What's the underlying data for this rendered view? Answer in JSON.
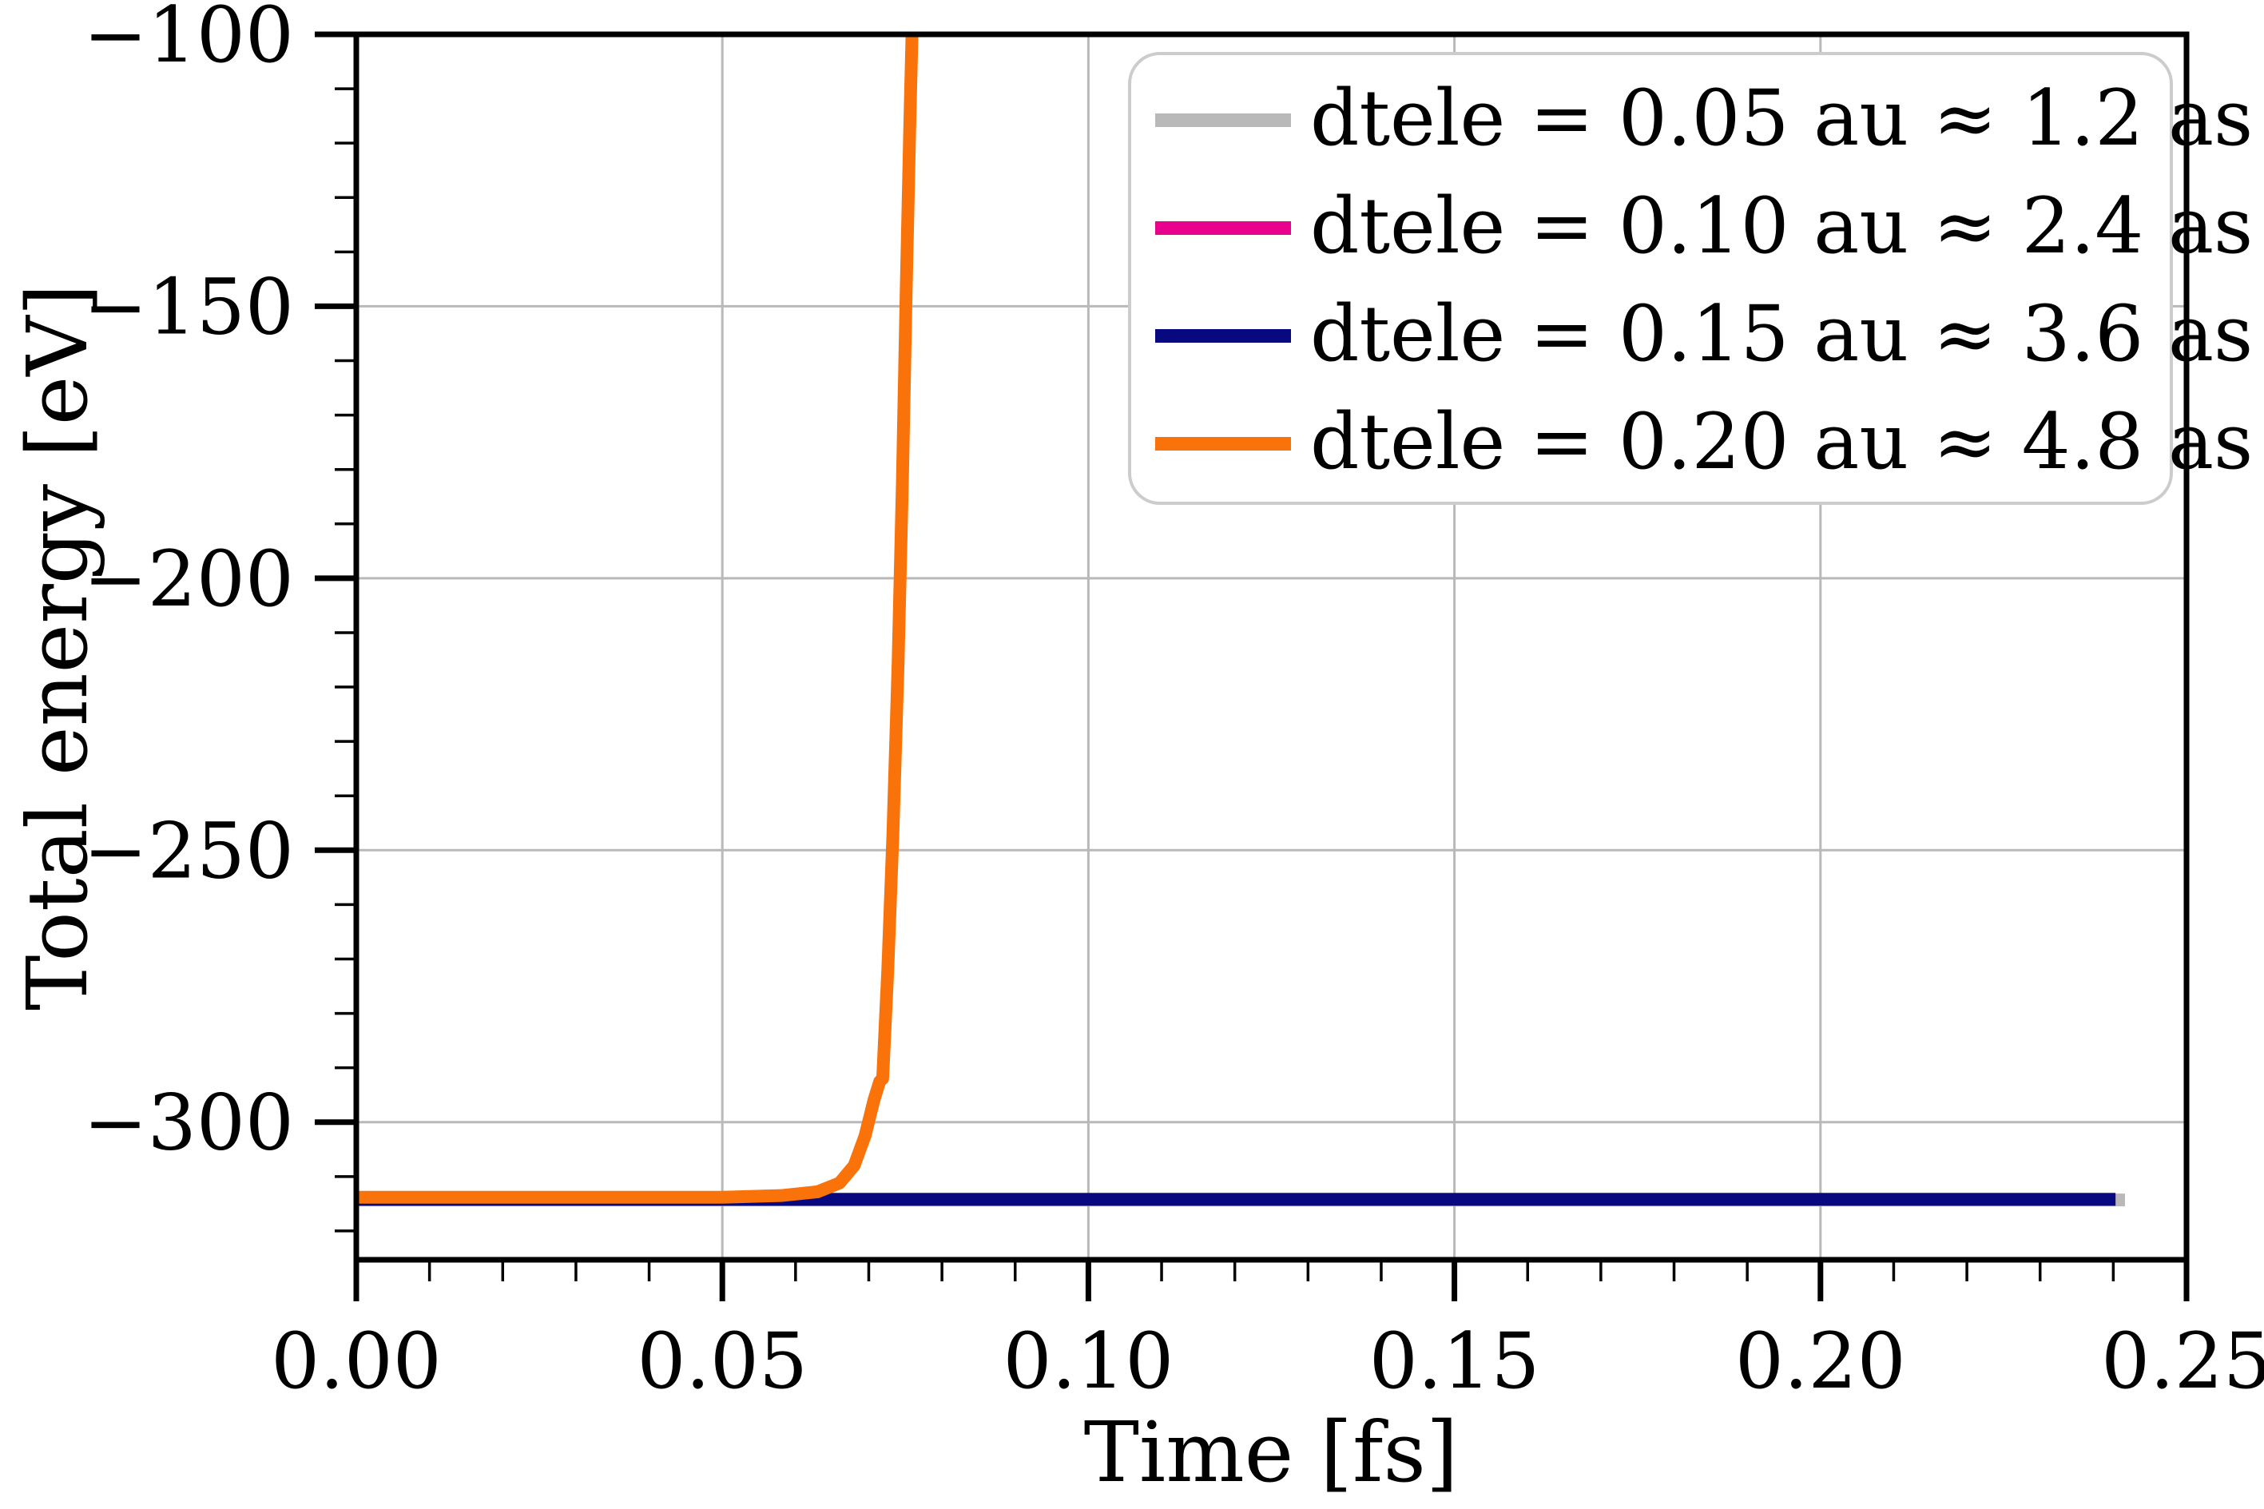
{
  "chart_data": {
    "type": "line",
    "title": "",
    "xlabel": "Time [fs]",
    "ylabel": "Total energy [eV]",
    "xlim": [
      0.0,
      0.25
    ],
    "ylim": [
      -325.3,
      -100
    ],
    "grid": {
      "show": true,
      "color": "#b9b9b9"
    },
    "axes_color": "#000000",
    "x_ticks": {
      "major": [
        0.0,
        0.05,
        0.1,
        0.15,
        0.2,
        0.25
      ],
      "labels": [
        "0.00",
        "0.05",
        "0.10",
        "0.15",
        "0.20",
        "0.25"
      ],
      "minor_step": 0.01
    },
    "y_ticks": {
      "major": [
        -100,
        -150,
        -200,
        -250,
        -300
      ],
      "labels": [
        "−100",
        "−150",
        "−200",
        "−250",
        "−300"
      ],
      "minor_step": 10
    },
    "legend": {
      "position": "upper right",
      "border_color": "#cccccc",
      "background": "#ffffff"
    },
    "series": [
      {
        "name": "dtele = 0.05 au ≈ 1.2 as",
        "color": "#b9b9b9",
        "line_width": 16,
        "points": [
          [
            0.0,
            -314.3
          ],
          [
            0.2416,
            -314.3
          ]
        ]
      },
      {
        "name": "dtele = 0.10 au ≈ 2.4 as",
        "color": "#e9008c",
        "line_width": 16,
        "points": [
          [
            0.0,
            -314.2
          ],
          [
            0.2403,
            -314.2
          ]
        ]
      },
      {
        "name": "dtele = 0.15 au ≈ 3.6 as",
        "color": "#08087f",
        "line_width": 16,
        "points": [
          [
            0.0,
            -314.2
          ],
          [
            0.2403,
            -314.2
          ]
        ]
      },
      {
        "name": "dtele = 0.20 au ≈ 4.8 as",
        "color": "#fa730a",
        "line_width": 16,
        "points": [
          [
            0.0,
            -313.8
          ],
          [
            0.05,
            -313.8
          ],
          [
            0.058,
            -313.5
          ],
          [
            0.063,
            -312.8
          ],
          [
            0.066,
            -311.2
          ],
          [
            0.068,
            -308.0
          ],
          [
            0.0695,
            -302.5
          ],
          [
            0.0707,
            -296.0
          ],
          [
            0.0715,
            -292.5
          ],
          [
            0.0719,
            -292.0
          ],
          [
            0.0726,
            -272.0
          ],
          [
            0.0733,
            -247.0
          ],
          [
            0.074,
            -216.0
          ],
          [
            0.0746,
            -182.0
          ],
          [
            0.0751,
            -148.0
          ],
          [
            0.0756,
            -117.0
          ],
          [
            0.076,
            -95.0
          ]
        ]
      }
    ]
  }
}
